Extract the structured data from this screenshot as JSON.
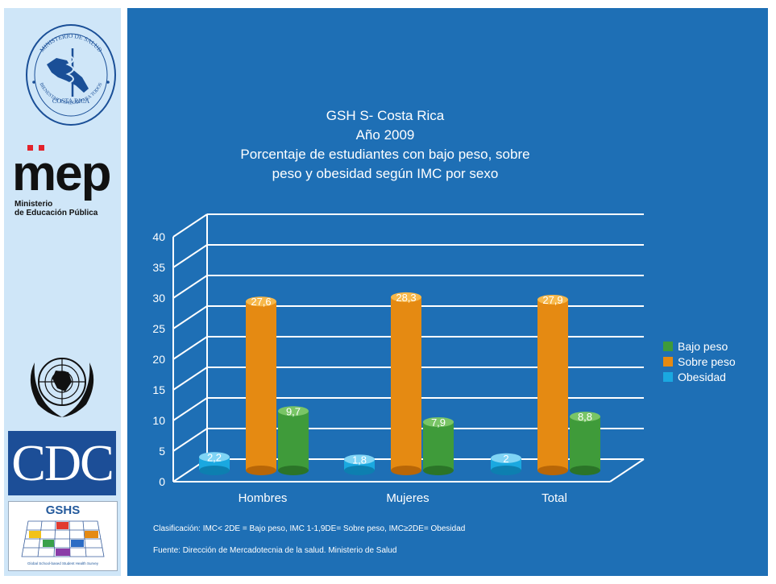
{
  "logos": {
    "ministerio_salud": {
      "top_text": "MINISTERIO DE SALUD",
      "mid_text": "COSTA RICA",
      "bottom_text": "BIENESTAR Y SALUD PARA TODOS"
    },
    "mep": {
      "word": "mep",
      "line1": "Ministerio",
      "line2": "de Educación Pública"
    },
    "un": {
      "icon": "un-emblem-icon"
    },
    "cdc": {
      "word": "CDC"
    },
    "gshs": {
      "title": "GSHS",
      "footer": "Global School-based Student Health Survey"
    }
  },
  "colors": {
    "background": "#1e6fb5",
    "sidebar": "#cfe6f8",
    "bajo_peso": "#3f9b3a",
    "sobre_peso": "#e58a12",
    "obesidad": "#1aa8e0"
  },
  "chart_data": {
    "type": "bar",
    "title_lines": [
      "GSH S- Costa Rica",
      "Año 2009",
      "Porcentaje de estudiantes con bajo peso, sobre",
      "peso y obesidad según IMC por sexo"
    ],
    "categories": [
      "Hombres",
      "Mujeres",
      "Total"
    ],
    "series": [
      {
        "name": "Obesidad",
        "values": [
          2.2,
          1.8,
          2
        ],
        "labels": [
          "2,2",
          "1,8",
          "2"
        ]
      },
      {
        "name": "Sobre peso",
        "values": [
          27.6,
          28.3,
          27.9
        ],
        "labels": [
          "27,6",
          "28,3",
          "27,9"
        ]
      },
      {
        "name": "Bajo peso",
        "values": [
          9.7,
          7.9,
          8.8
        ],
        "labels": [
          "9,7",
          "7,9",
          "8,8"
        ]
      }
    ],
    "legend_order": [
      "Bajo peso",
      "Sobre peso",
      "Obesidad"
    ],
    "ylim": [
      0,
      40
    ],
    "yticks": [
      0,
      5,
      10,
      15,
      20,
      25,
      30,
      35,
      40
    ],
    "grid": true,
    "legend_position": "right"
  },
  "notes": {
    "clasificacion": "Clasificación: IMC< 2DE = Bajo peso, IMC 1-1,9DE= Sobre peso, IMC≥2DE= Obesidad",
    "fuente": "Fuente: Dirección de Mercadotecnia de la salud. Ministerio de Salud"
  }
}
